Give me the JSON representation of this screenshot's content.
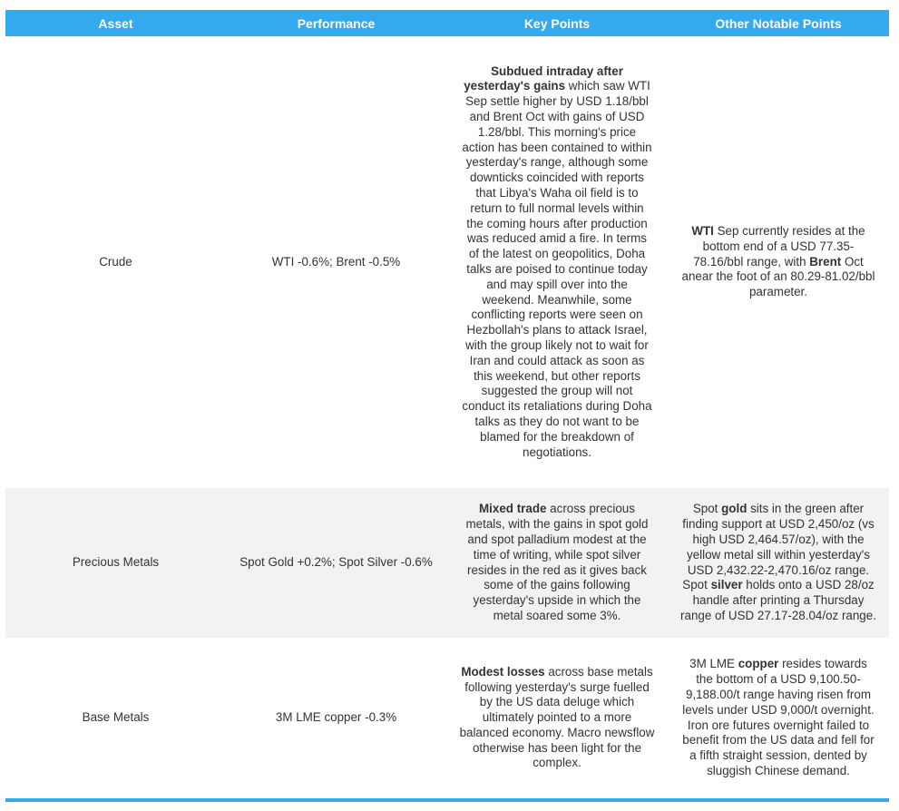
{
  "headers": [
    "Asset",
    "Performance",
    "Key Points",
    "Other Notable Points"
  ],
  "colors": {
    "header_bg": "#33a9ee",
    "row_shade": "#f2f2f2",
    "text": "#333333"
  },
  "rows": [
    {
      "asset": "Crude",
      "performance": "WTI -0.6%; Brent -0.5%",
      "key_points": [
        "Subdued intraday after yesterday's gains",
        " which saw WTI Sep settle higher by USD 1.18/bbl and Brent Oct with gains of USD 1.28/bbl. This morning's price action has been contained to within yesterday's range, although some downticks coincided with reports that Libya's Waha oil field is to return to full normal levels within the coming hours after production was reduced amid a fire. In terms of the latest on geopolitics, Doha talks are poised to continue today and may spill over into the weekend. Meanwhile, some conflicting reports were seen on Hezbollah's plans to attack Israel, with the group likely not to wait for Iran and could attack as soon as this weekend, but other reports suggested the group will not conduct its retaliations during Doha talks as they do not want to be blamed for the breakdown of negotiations."
      ],
      "other_points": [
        "WTI",
        " Sep currently resides at the bottom end of a USD 77.35-78.16/bbl range, with ",
        "Brent",
        " Oct anear the foot of an 80.29-81.02/bbl parameter."
      ]
    },
    {
      "asset": "Precious Metals",
      "performance": "Spot Gold +0.2%; Spot Silver -0.6%",
      "key_points": [
        "Mixed trade",
        " across precious metals, with the gains in spot gold and spot palladium modest at the time of writing, while spot silver resides in the red as it gives back some of the gains following yesterday's upside in which the metal soared some 3%."
      ],
      "other_points": [
        "Spot ",
        "gold",
        " sits in the green after finding support at USD 2,450/oz (vs high USD 2,464.57/oz), with the yellow metal sill within yesterday's USD 2,432.22-2,470.16/oz range. Spot ",
        "silver",
        " holds onto a USD 28/oz handle after printing a Thursday range of USD 27.17-28.04/oz range."
      ]
    },
    {
      "asset": "Base Metals",
      "performance": "3M LME copper -0.3%",
      "key_points": [
        "Modest losses",
        " across base metals following yesterday's surge fuelled by the US data deluge which ultimately pointed to a more balanced economy. Macro newsflow otherwise has been light for the complex."
      ],
      "other_points": [
        "3M LME ",
        "copper",
        " resides towards the bottom of a USD 9,100.50-9,188.00/t range having risen from levels under USD 9,000/t overnight. Iron ore futures overnight failed to benefit from the US data and fell for a fifth straight session, dented by sluggish Chinese demand."
      ]
    }
  ]
}
